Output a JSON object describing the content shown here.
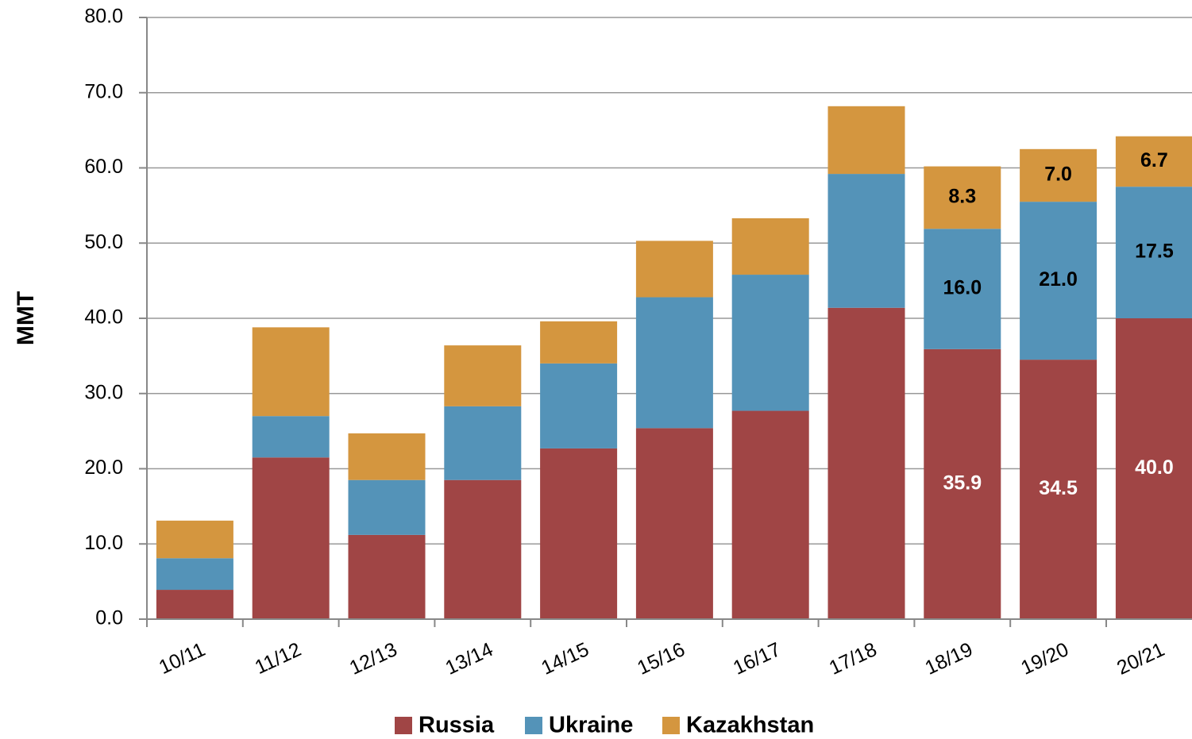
{
  "chart_data": {
    "type": "stacked_bar",
    "y_label": "MMT",
    "categories": [
      "10/11",
      "11/12",
      "12/13",
      "13/14",
      "14/15",
      "15/16",
      "16/17",
      "17/18",
      "18/19",
      "19/20",
      "20/21"
    ],
    "series": [
      {
        "name": "Russia",
        "color": "#a04545",
        "values": [
          3.9,
          21.5,
          11.2,
          18.5,
          22.7,
          25.4,
          27.7,
          41.4,
          35.9,
          34.5,
          40.0
        ],
        "value_labels": [
          null,
          null,
          null,
          null,
          null,
          null,
          null,
          null,
          "35.9",
          "34.5",
          "40.0"
        ]
      },
      {
        "name": "Ukraine",
        "color": "#5493b8",
        "values": [
          4.2,
          5.5,
          7.3,
          9.8,
          11.3,
          17.4,
          18.1,
          17.8,
          16.0,
          21.0,
          17.5
        ],
        "value_labels": [
          null,
          null,
          null,
          null,
          null,
          null,
          null,
          null,
          "16.0",
          "21.0",
          "17.5"
        ]
      },
      {
        "name": "Kazakhstan",
        "color": "#d4963f",
        "values": [
          5.0,
          11.8,
          6.2,
          8.1,
          5.6,
          7.5,
          7.5,
          9.0,
          8.3,
          7.0,
          6.7
        ],
        "value_labels": [
          null,
          null,
          null,
          null,
          null,
          null,
          null,
          null,
          "8.3",
          "7.0",
          "6.7"
        ]
      }
    ],
    "ylim": [
      0,
      80
    ],
    "yticks": [
      {
        "value": 0,
        "label": "0.0"
      },
      {
        "value": 10,
        "label": "10.0"
      },
      {
        "value": 20,
        "label": "20.0"
      },
      {
        "value": 30,
        "label": "30.0"
      },
      {
        "value": 40,
        "label": "40.0"
      },
      {
        "value": 50,
        "label": "50.0"
      },
      {
        "value": 60,
        "label": "60.0"
      },
      {
        "value": 70,
        "label": "70.0"
      },
      {
        "value": 80,
        "label": "80.0"
      }
    ],
    "grid": true,
    "legend": "bottom"
  }
}
